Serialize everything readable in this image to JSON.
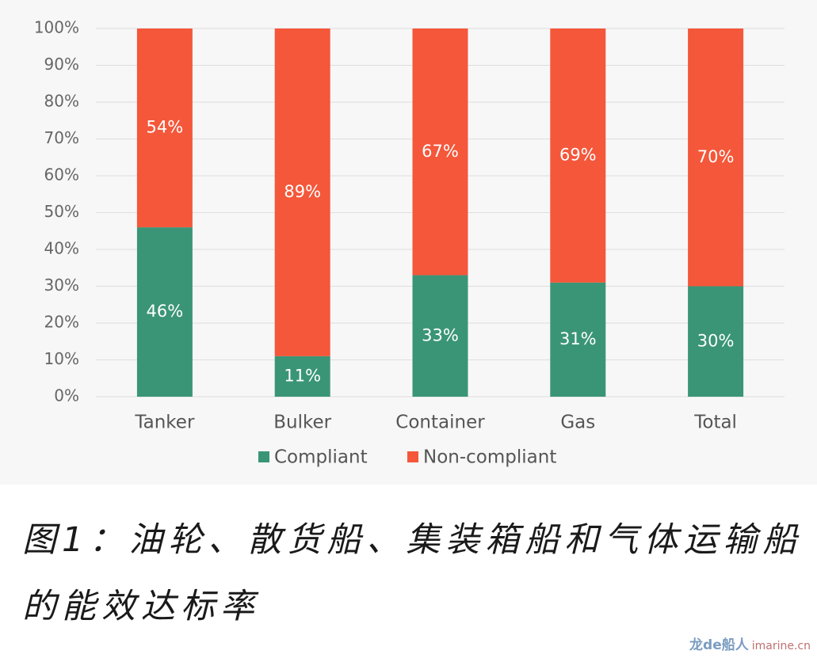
{
  "chart_data": {
    "type": "stacked_bar",
    "categories": [
      "Tanker",
      "Bulker",
      "Container",
      "Gas",
      "Total"
    ],
    "series": [
      {
        "name": "Compliant",
        "color": "#3a9577",
        "values": [
          46,
          11,
          33,
          31,
          30
        ],
        "value_labels": [
          "46%",
          "11%",
          "33%",
          "31%",
          "30%"
        ]
      },
      {
        "name": "Non-compliant",
        "color": "#f4573a",
        "values": [
          54,
          89,
          67,
          69,
          70
        ],
        "value_labels": [
          "54%",
          "89%",
          "67%",
          "69%",
          "70%"
        ]
      }
    ],
    "ylim": [
      0,
      100
    ],
    "yticks": [
      {
        "value": 0,
        "label": "0%"
      },
      {
        "value": 10,
        "label": "10%"
      },
      {
        "value": 20,
        "label": "20%"
      },
      {
        "value": 30,
        "label": "30%"
      },
      {
        "value": 40,
        "label": "40%"
      },
      {
        "value": 50,
        "label": "50%"
      },
      {
        "value": 60,
        "label": "60%"
      },
      {
        "value": 70,
        "label": "70%"
      },
      {
        "value": 80,
        "label": "80%"
      },
      {
        "value": 90,
        "label": "90%"
      },
      {
        "value": 100,
        "label": "100%"
      }
    ],
    "grid": true,
    "legend": "bottom"
  },
  "caption": "图1：油轮、散货船、集装箱船和气体运输船的能效达标率",
  "watermark": {
    "brand": "龙de船人",
    "site": "imarine.cn"
  }
}
